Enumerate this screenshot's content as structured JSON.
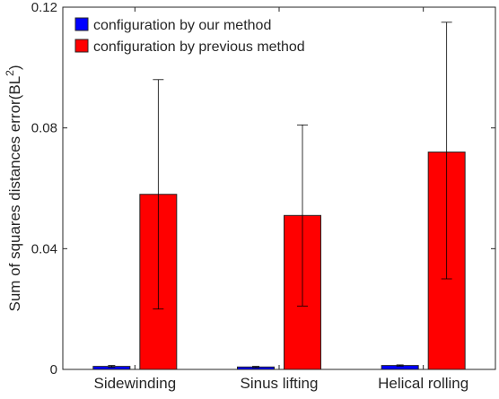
{
  "chart_data": {
    "type": "bar",
    "title": "",
    "xlabel": "",
    "ylabel": "Sum of squares distances error(BL",
    "ylabel_superscript": "2",
    "ylabel_suffix": ")",
    "categories": [
      "Sidewinding",
      "Sinus lifting",
      "Helical rolling"
    ],
    "ylim": [
      0,
      0.12
    ],
    "yticks": [
      0,
      0.04,
      0.08,
      0.12
    ],
    "ytick_labels": [
      "0",
      "0.04",
      "0.08",
      "0.12"
    ],
    "grid": false,
    "legend_position": "top-left",
    "series": [
      {
        "name": "configuration by our method",
        "color": "#0000ff",
        "values": [
          0.001,
          0.0008,
          0.0013
        ],
        "error_low": [
          0.0007,
          0.0006,
          0.0011
        ],
        "error_high": [
          0.0013,
          0.001,
          0.0015
        ]
      },
      {
        "name": "configuration by previous method",
        "color": "#ff0000",
        "values": [
          0.058,
          0.051,
          0.072
        ],
        "error_low": [
          0.02,
          0.021,
          0.03
        ],
        "error_high": [
          0.096,
          0.081,
          0.115
        ]
      }
    ]
  }
}
